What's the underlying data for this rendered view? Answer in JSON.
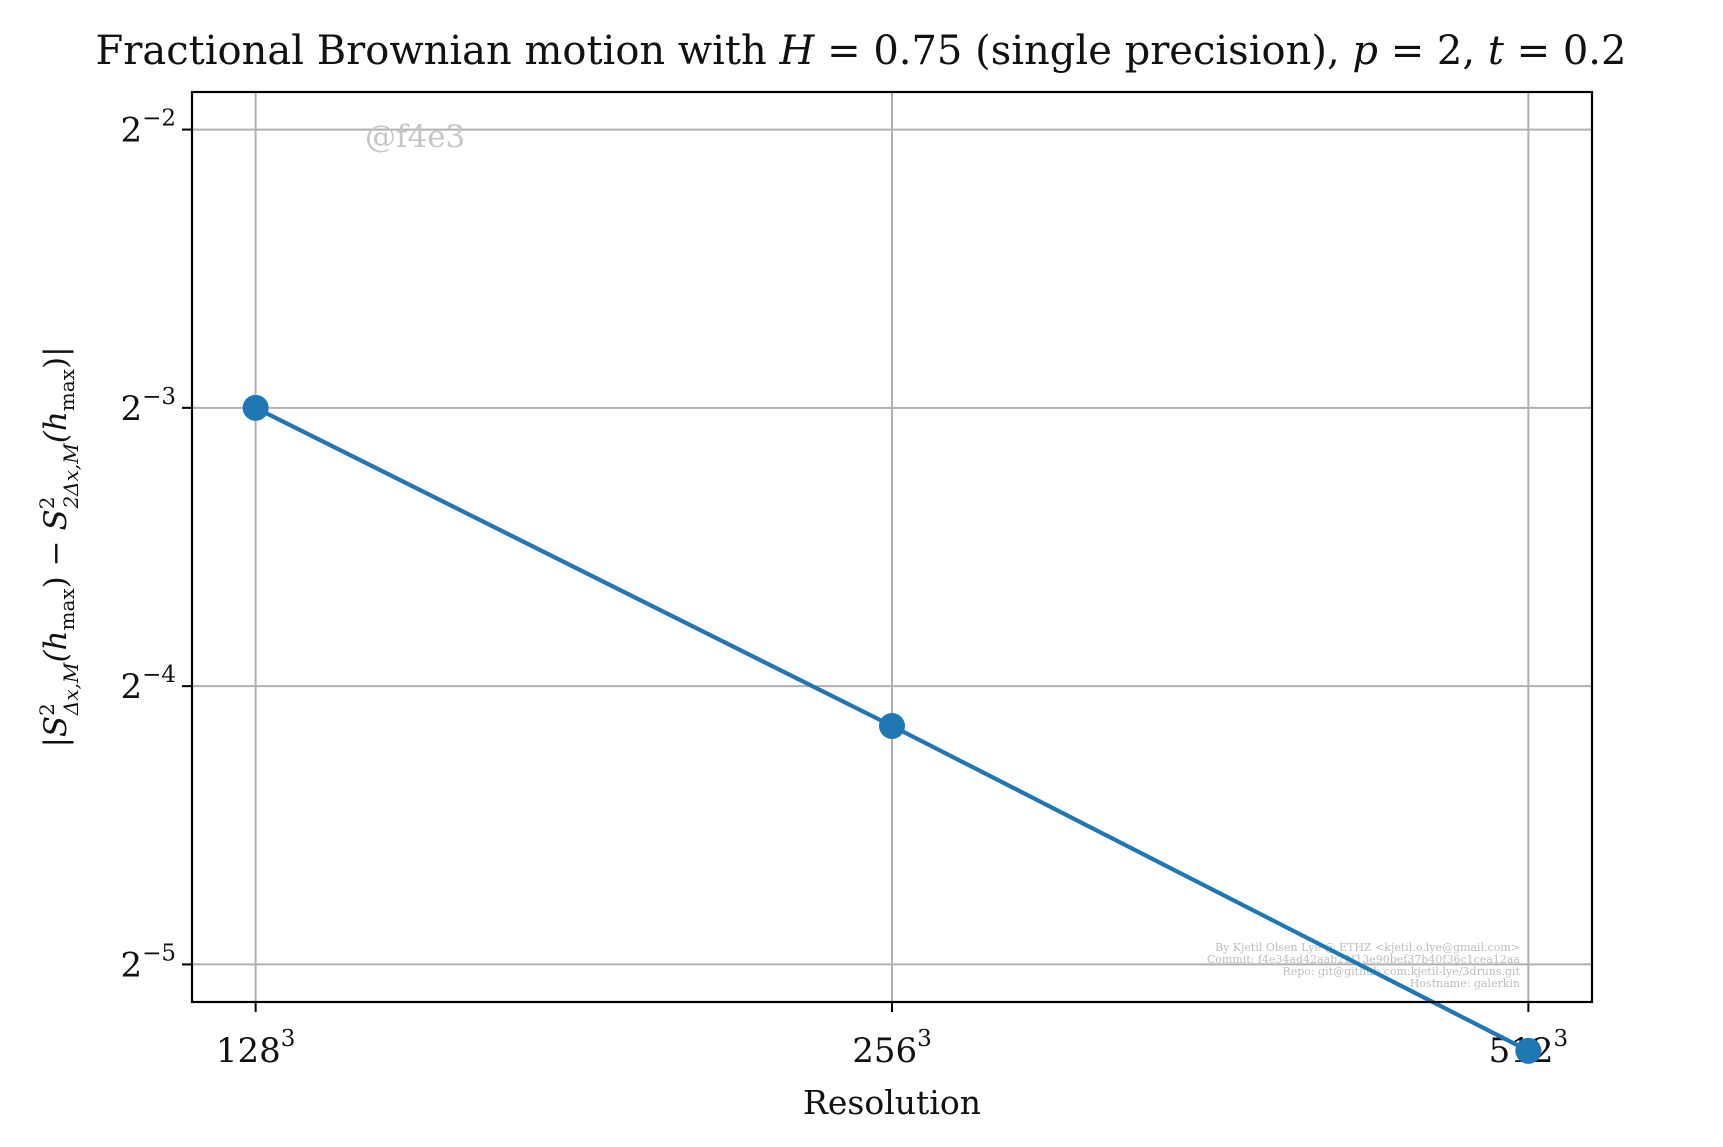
{
  "chart_data": {
    "type": "line",
    "title_parts": {
      "prefix": "Fractional Brownian motion with ",
      "h_symbol": "H",
      "h_value": " = 0.75 ",
      "middle": "(single precision), ",
      "p_symbol": "p",
      "p_value": " = 2, ",
      "t_symbol": "t",
      "t_value": " = 0.2"
    },
    "xlabel": "Resolution",
    "ylabel_parts": {
      "bar": "|",
      "s": "S",
      "sup": "2",
      "sub1": "Δx,M",
      "h": "(h",
      "hsub": "max",
      "close": ")",
      "minus": " − ",
      "sub2": "2Δx,M",
      "end": "|"
    },
    "x_ticks": [
      {
        "base": "128",
        "exp": "3",
        "value": 128
      },
      {
        "base": "256",
        "exp": "3",
        "value": 256
      },
      {
        "base": "512",
        "exp": "3",
        "value": 512
      }
    ],
    "y_ticks": [
      {
        "base": "2",
        "exp": "−2",
        "log2": -2
      },
      {
        "base": "2",
        "exp": "−3",
        "log2": -3
      },
      {
        "base": "2",
        "exp": "−4",
        "log2": -4
      },
      {
        "base": "2",
        "exp": "−5",
        "log2": -5
      }
    ],
    "x_scale": "log2",
    "y_scale": "log2",
    "xlim_log2": [
      6.9,
      9.1
    ],
    "ylim_log2": [
      -5.135,
      -1.865
    ],
    "grid": true,
    "series": [
      {
        "color": "#1f77b4",
        "x": [
          128,
          256,
          512
        ],
        "y": [
          0.125,
          0.0566,
          0.0252
        ]
      }
    ],
    "annotations": {
      "watermark": "@f4e3",
      "credits": [
        "By Kjetil Olsen Lye @ ETHZ <kjetil.o.lye@gmail.com>",
        "Commit: f4e34ad42aab22f13e90bef37b40f36c1cea12aa",
        "Repo: git@github.com:kjetil-lye/3druns.git",
        "Hostname: galerkin"
      ]
    }
  }
}
